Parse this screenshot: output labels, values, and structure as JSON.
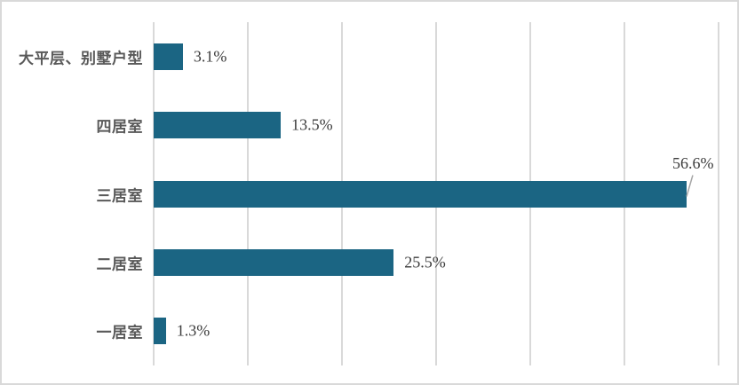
{
  "chart_data": {
    "type": "bar",
    "orientation": "horizontal",
    "title": "",
    "xlabel": "",
    "ylabel": "",
    "categories": [
      "大平层、别墅户型",
      "四居室",
      "三居室",
      "二居室",
      "一居室"
    ],
    "values": [
      3.1,
      13.5,
      56.6,
      25.5,
      1.3
    ],
    "value_labels": [
      "3.1%",
      "13.5%",
      "56.6%",
      "25.5%",
      "1.3%"
    ],
    "xlim": [
      0,
      60
    ],
    "gridline_interval": 10,
    "grid": true,
    "legend": false,
    "callout_index": 2,
    "colors": {
      "bar": "#1b6583",
      "gridline": "#d9d9d9",
      "category_label": "#595959",
      "value_label": "#3c3c3c",
      "callout_line": "#a6a6a6",
      "frame_border": "#d9d9d9",
      "background": "#ffffff"
    }
  }
}
